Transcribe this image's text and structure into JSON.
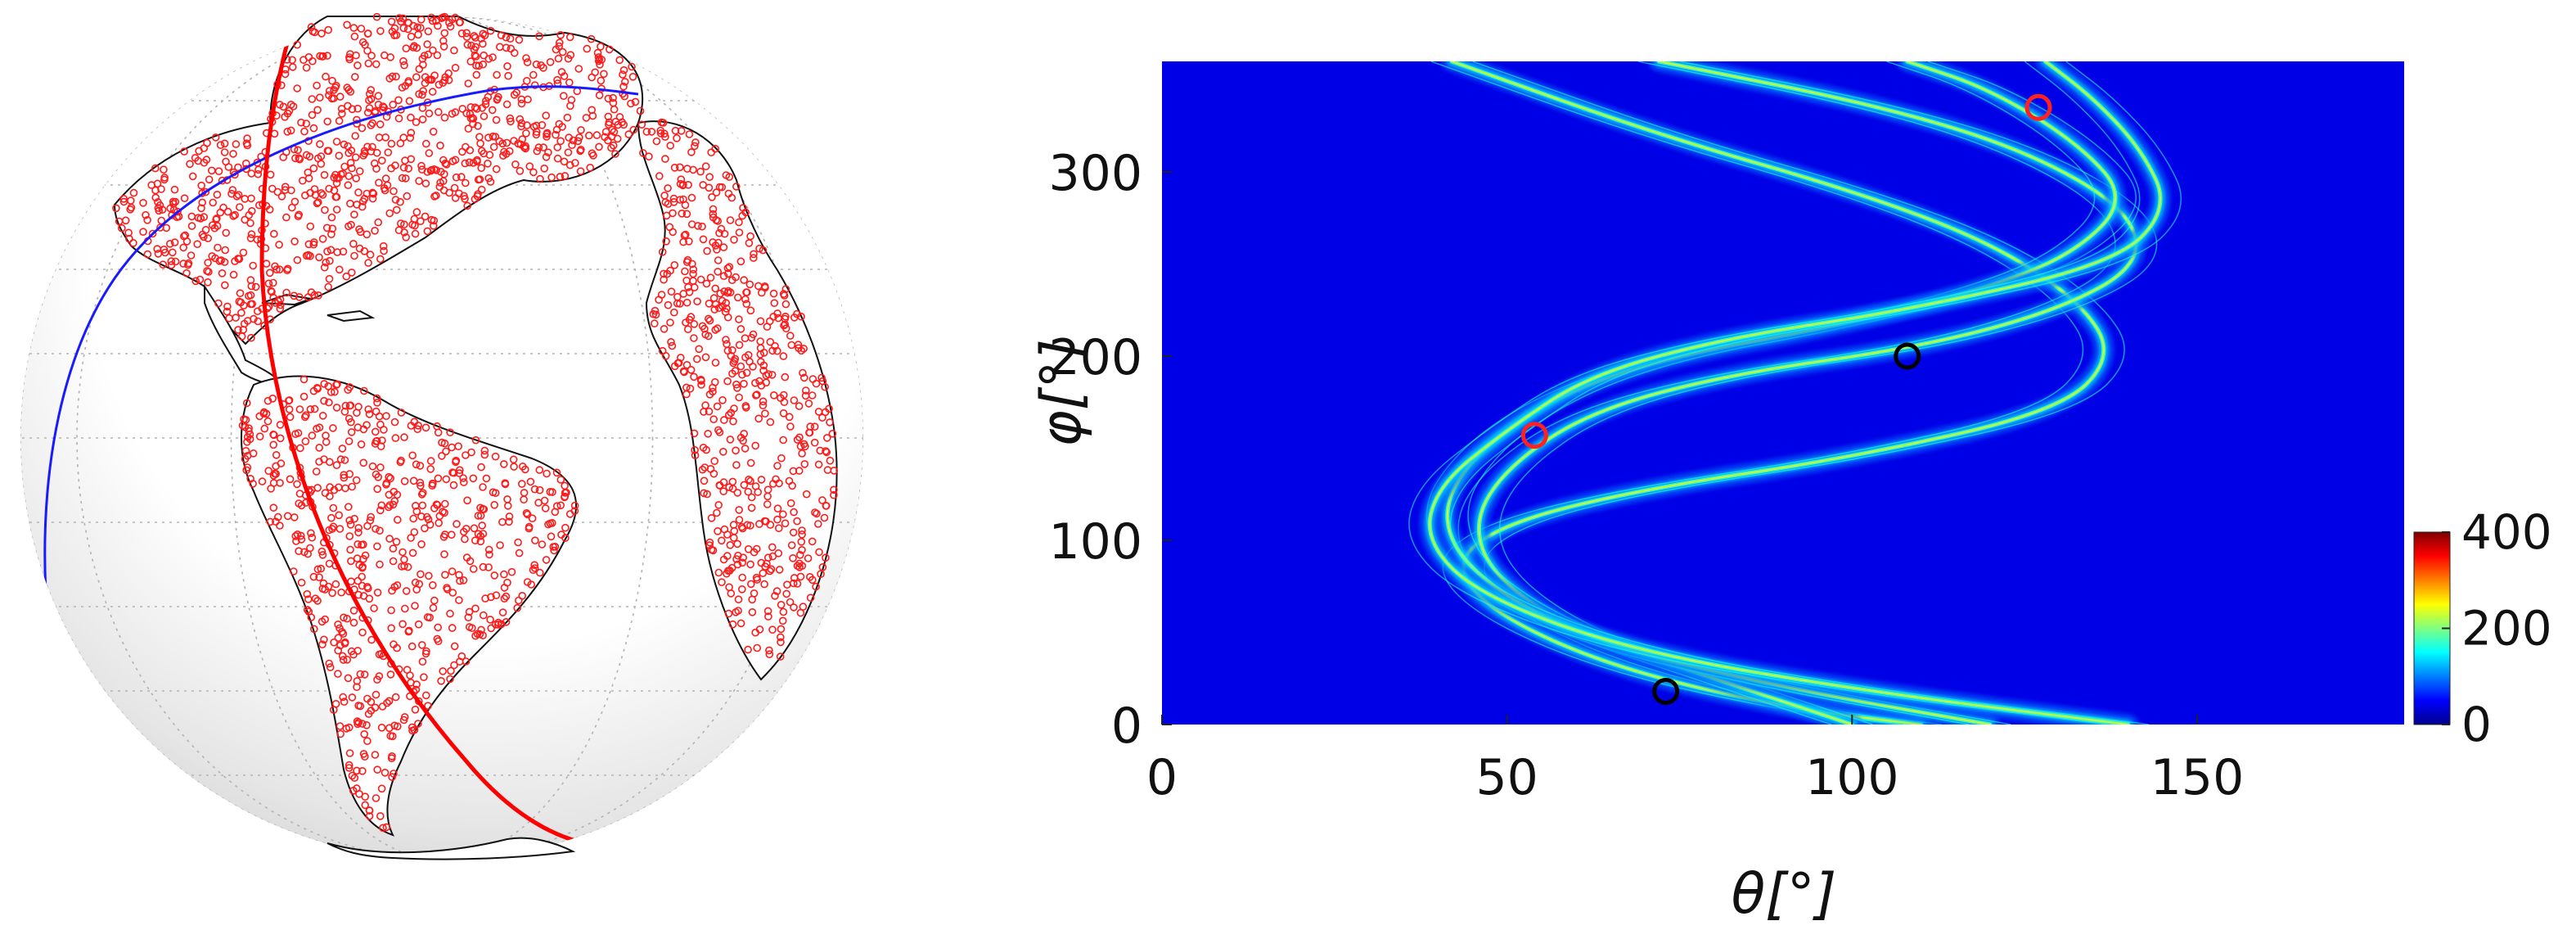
{
  "globe": {
    "sphere_shade": "#d6d6d6",
    "sphere_highlight": "#ffffff",
    "coastline_color": "#111111",
    "station_color": "#ff1a1a",
    "great_circle_red": "#ff0000",
    "great_circle_blue": "#1a1aff",
    "grid_color": "#b4b4b4"
  },
  "chart_data": {
    "type": "heatmap",
    "title": "",
    "xlabel": "θ[°]",
    "ylabel": "φ[°]",
    "xlim": [
      0,
      180
    ],
    "ylim": [
      0,
      360
    ],
    "x_ticks": [
      "0",
      "50",
      "100",
      "150"
    ],
    "x_tick_values": [
      0,
      50,
      100,
      150
    ],
    "y_ticks": [
      "0",
      "100",
      "200",
      "300"
    ],
    "y_tick_values": [
      0,
      100,
      200,
      300
    ],
    "colorbar": {
      "colormap": "jet",
      "range": [
        0,
        400
      ],
      "ticks": [
        "0",
        "200",
        "400"
      ],
      "tick_values": [
        0,
        200,
        400
      ]
    },
    "background_level": 40,
    "curve_bundles": [
      {
        "name": "",
        "points": [
          [
            42,
            360
          ],
          [
            72,
            320
          ],
          [
            100,
            290
          ],
          [
            120,
            262
          ],
          [
            133,
            230
          ],
          [
            138,
            200
          ],
          [
            130,
            170
          ],
          [
            100,
            145
          ],
          [
            70,
            128
          ],
          [
            50,
            110
          ],
          [
            42,
            88
          ],
          [
            48,
            60
          ],
          [
            66,
            30
          ],
          [
            92,
            8
          ],
          [
            110,
            0
          ]
        ]
      },
      {
        "name": "",
        "points": [
          [
            72,
            360
          ],
          [
            104,
            336
          ],
          [
            125,
            312
          ],
          [
            140,
            280
          ],
          [
            142,
            250
          ],
          [
            130,
            225
          ],
          [
            110,
            205
          ],
          [
            82,
            190
          ],
          [
            62,
            170
          ],
          [
            50,
            140
          ],
          [
            45,
            110
          ],
          [
            48,
            80
          ],
          [
            60,
            50
          ],
          [
            80,
            25
          ],
          [
            100,
            0
          ]
        ]
      },
      {
        "name": "",
        "points": [
          [
            108,
            360
          ],
          [
            120,
            345
          ],
          [
            133,
            315
          ],
          [
            140,
            285
          ],
          [
            132,
            255
          ],
          [
            118,
            235
          ],
          [
            96,
            215
          ],
          [
            74,
            200
          ],
          [
            58,
            180
          ],
          [
            46,
            150
          ],
          [
            40,
            115
          ],
          [
            45,
            80
          ],
          [
            62,
            45
          ],
          [
            90,
            20
          ],
          [
            120,
            0
          ]
        ]
      },
      {
        "name": "",
        "points": [
          [
            128,
            360
          ],
          [
            135,
            340
          ],
          [
            142,
            312
          ],
          [
            146,
            280
          ],
          [
            138,
            250
          ],
          [
            108,
            225
          ],
          [
            82,
            210
          ],
          [
            62,
            190
          ],
          [
            50,
            160
          ],
          [
            40,
            130
          ],
          [
            38,
            100
          ],
          [
            46,
            70
          ],
          [
            68,
            40
          ],
          [
            102,
            18
          ],
          [
            140,
            0
          ]
        ]
      }
    ],
    "markers": [
      {
        "theta": 127,
        "phi": 335,
        "color": "#ff2020"
      },
      {
        "theta": 54,
        "phi": 157,
        "color": "#ff2020"
      },
      {
        "theta": 108,
        "phi": 200,
        "color": "#000000"
      },
      {
        "theta": 73,
        "phi": 18,
        "color": "#000000"
      }
    ]
  }
}
